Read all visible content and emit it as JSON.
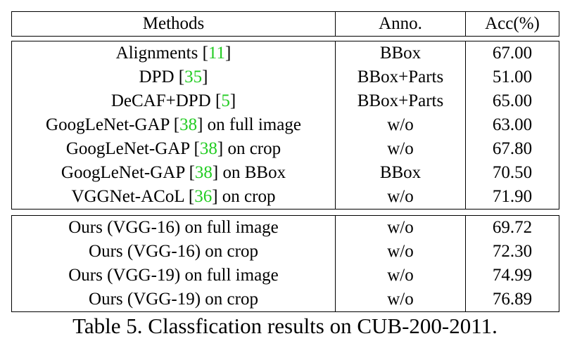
{
  "header": {
    "methods": "Methods",
    "anno": "Anno.",
    "acc": "Acc(%)"
  },
  "prior_rows": [
    {
      "pre": "Alignments [",
      "ref": "11",
      "post": "]",
      "anno": "BBox",
      "acc": "67.00"
    },
    {
      "pre": "DPD [",
      "ref": "35",
      "post": "]",
      "anno": "BBox+Parts",
      "acc": "51.00"
    },
    {
      "pre": "DeCAF+DPD [",
      "ref": "5",
      "post": "]",
      "anno": "BBox+Parts",
      "acc": "65.00"
    },
    {
      "pre": "GoogLeNet-GAP [",
      "ref": "38",
      "post": "] on full image",
      "anno": "w/o",
      "acc": "63.00"
    },
    {
      "pre": "GoogLeNet-GAP [",
      "ref": "38",
      "post": "] on crop",
      "anno": "w/o",
      "acc": "67.80"
    },
    {
      "pre": "GoogLeNet-GAP [",
      "ref": "38",
      "post": "] on BBox",
      "anno": "BBox",
      "acc": "70.50"
    },
    {
      "pre": "VGGNet-ACoL [",
      "ref": "36",
      "post": "] on crop",
      "anno": "w/o",
      "acc": "71.90"
    }
  ],
  "ours_rows": [
    {
      "method": "Ours (VGG-16) on full image",
      "anno": "w/o",
      "acc": "69.72"
    },
    {
      "method": "Ours (VGG-16) on crop",
      "anno": "w/o",
      "acc": "72.30"
    },
    {
      "method": "Ours (VGG-19) on full image",
      "anno": "w/o",
      "acc": "74.99"
    },
    {
      "method": "Ours (VGG-19) on crop",
      "anno": "w/o",
      "acc": "76.89"
    }
  ],
  "caption": "Table 5. Classfication results on CUB-200-2011.",
  "colors": {
    "citation": "#22cc22",
    "text": "#000000"
  }
}
